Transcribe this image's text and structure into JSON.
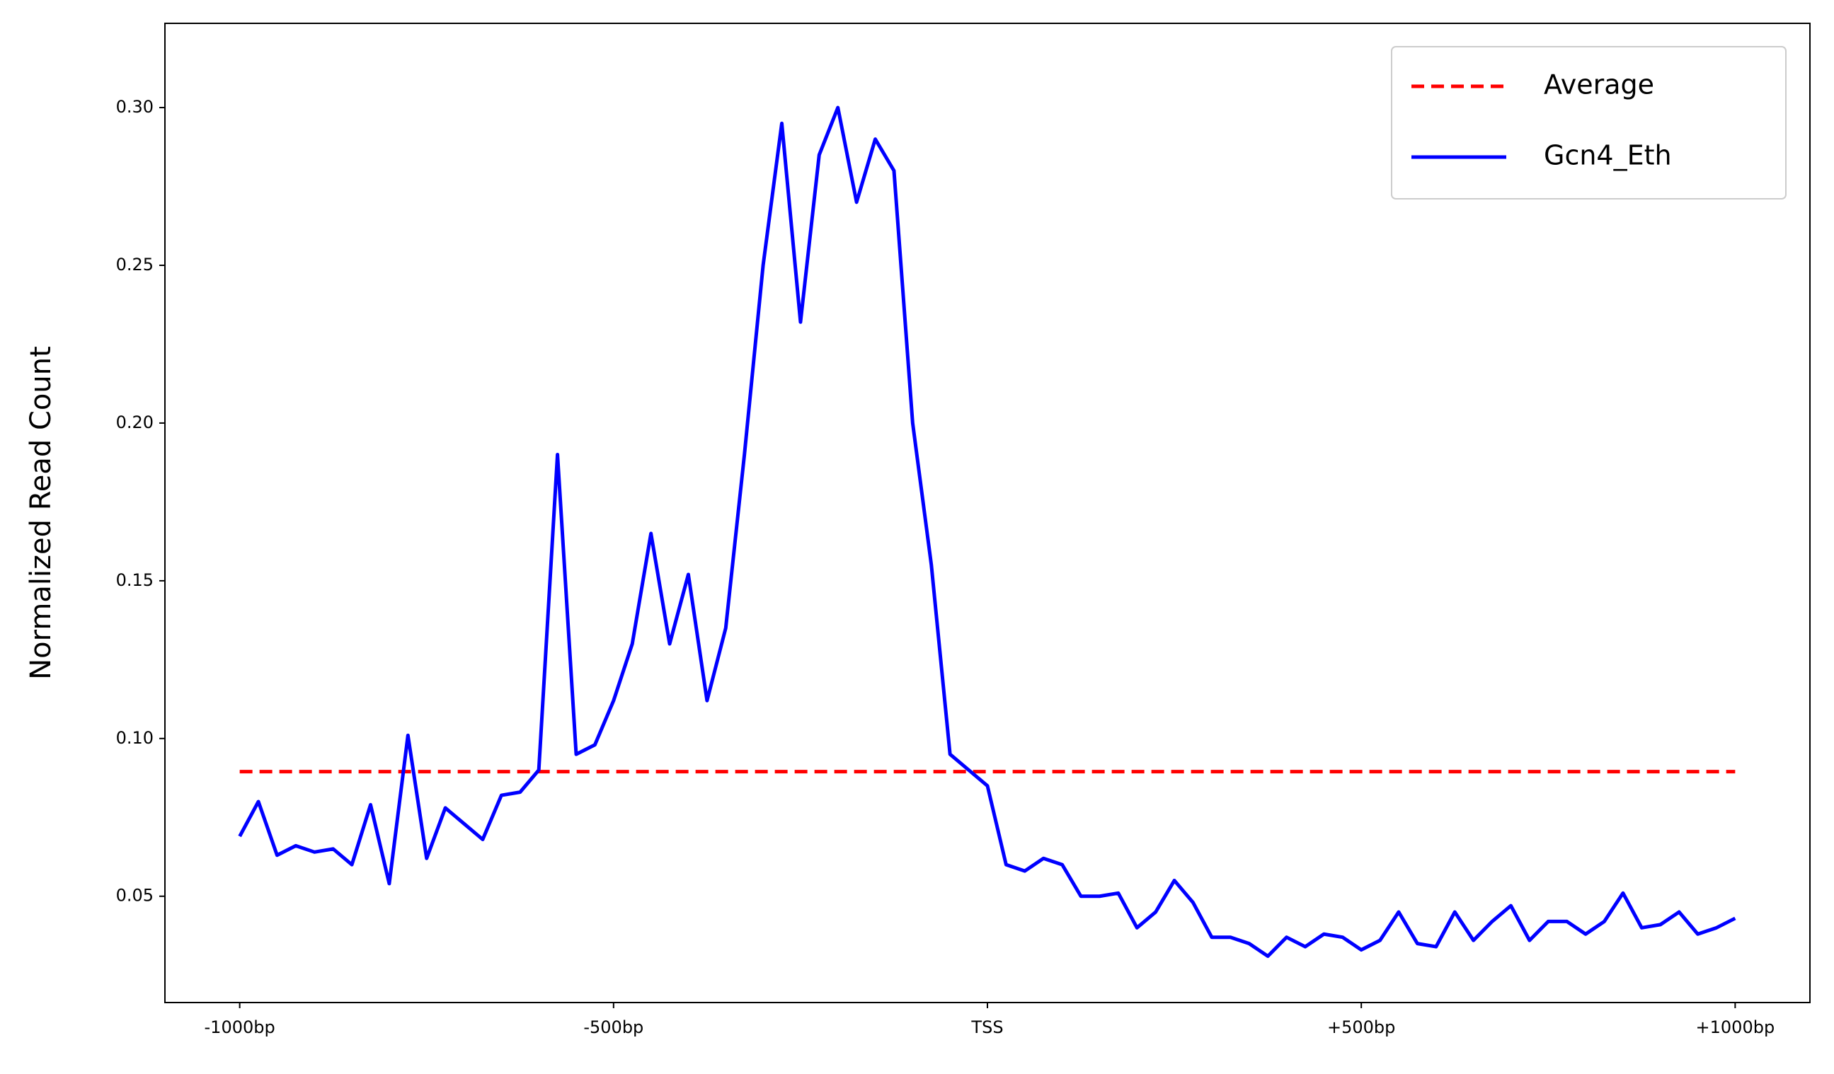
{
  "chart_data": {
    "type": "line",
    "y_label": "Normalized Read Count",
    "xlim": [
      -1100,
      1100
    ],
    "ylim": [
      0.0163,
      0.3267
    ],
    "xticks": [
      {
        "value": -1000,
        "label": "-1000bp"
      },
      {
        "value": -500,
        "label": "-500bp"
      },
      {
        "value": 0,
        "label": "TSS"
      },
      {
        "value": 500,
        "label": "+500bp"
      },
      {
        "value": 1000,
        "label": "+1000bp"
      }
    ],
    "yticks": [
      0.05,
      {
        "value": 0.1,
        "label": "0.10"
      },
      0.15,
      {
        "value": 0.2,
        "label": "0.20"
      },
      0.25,
      {
        "value": 0.3,
        "label": "0.30"
      }
    ],
    "legend": "upper right",
    "series": [
      {
        "name": "Average",
        "color": "#ff0000",
        "dashed": true,
        "x": [
          -1000,
          1000
        ],
        "values": [
          0.0895,
          0.0895
        ]
      },
      {
        "name": "Gcn4_Eth",
        "color": "#0000ff",
        "dashed": false,
        "x": [
          -1000,
          -975,
          -950,
          -925,
          -900,
          -875,
          -850,
          -825,
          -800,
          -775,
          -750,
          -725,
          -700,
          -675,
          -650,
          -625,
          -600,
          -575,
          -550,
          -525,
          -500,
          -475,
          -450,
          -425,
          -400,
          -375,
          -350,
          -325,
          -300,
          -275,
          -250,
          -225,
          -200,
          -175,
          -150,
          -125,
          -100,
          -75,
          -50,
          -25,
          0,
          25,
          50,
          75,
          100,
          125,
          150,
          175,
          200,
          225,
          250,
          275,
          300,
          325,
          350,
          375,
          400,
          425,
          450,
          475,
          500,
          525,
          550,
          575,
          600,
          625,
          650,
          675,
          700,
          725,
          750,
          775,
          800,
          825,
          850,
          875,
          900,
          925,
          950,
          975,
          1000
        ],
        "values": [
          0.069,
          0.08,
          0.063,
          0.066,
          0.064,
          0.065,
          0.06,
          0.079,
          0.054,
          0.101,
          0.062,
          0.078,
          0.073,
          0.068,
          0.082,
          0.083,
          0.09,
          0.19,
          0.095,
          0.098,
          0.112,
          0.13,
          0.165,
          0.13,
          0.152,
          0.112,
          0.135,
          0.19,
          0.25,
          0.295,
          0.232,
          0.285,
          0.3,
          0.27,
          0.29,
          0.28,
          0.2,
          0.155,
          0.095,
          0.09,
          0.085,
          0.06,
          0.058,
          0.062,
          0.06,
          0.05,
          0.05,
          0.051,
          0.04,
          0.045,
          0.055,
          0.048,
          0.037,
          0.037,
          0.035,
          0.031,
          0.037,
          0.034,
          0.038,
          0.037,
          0.033,
          0.036,
          0.045,
          0.035,
          0.034,
          0.045,
          0.036,
          0.042,
          0.047,
          0.036,
          0.042,
          0.042,
          0.038,
          0.042,
          0.051,
          0.04,
          0.041,
          0.045,
          0.038,
          0.04,
          0.043
        ]
      }
    ]
  }
}
